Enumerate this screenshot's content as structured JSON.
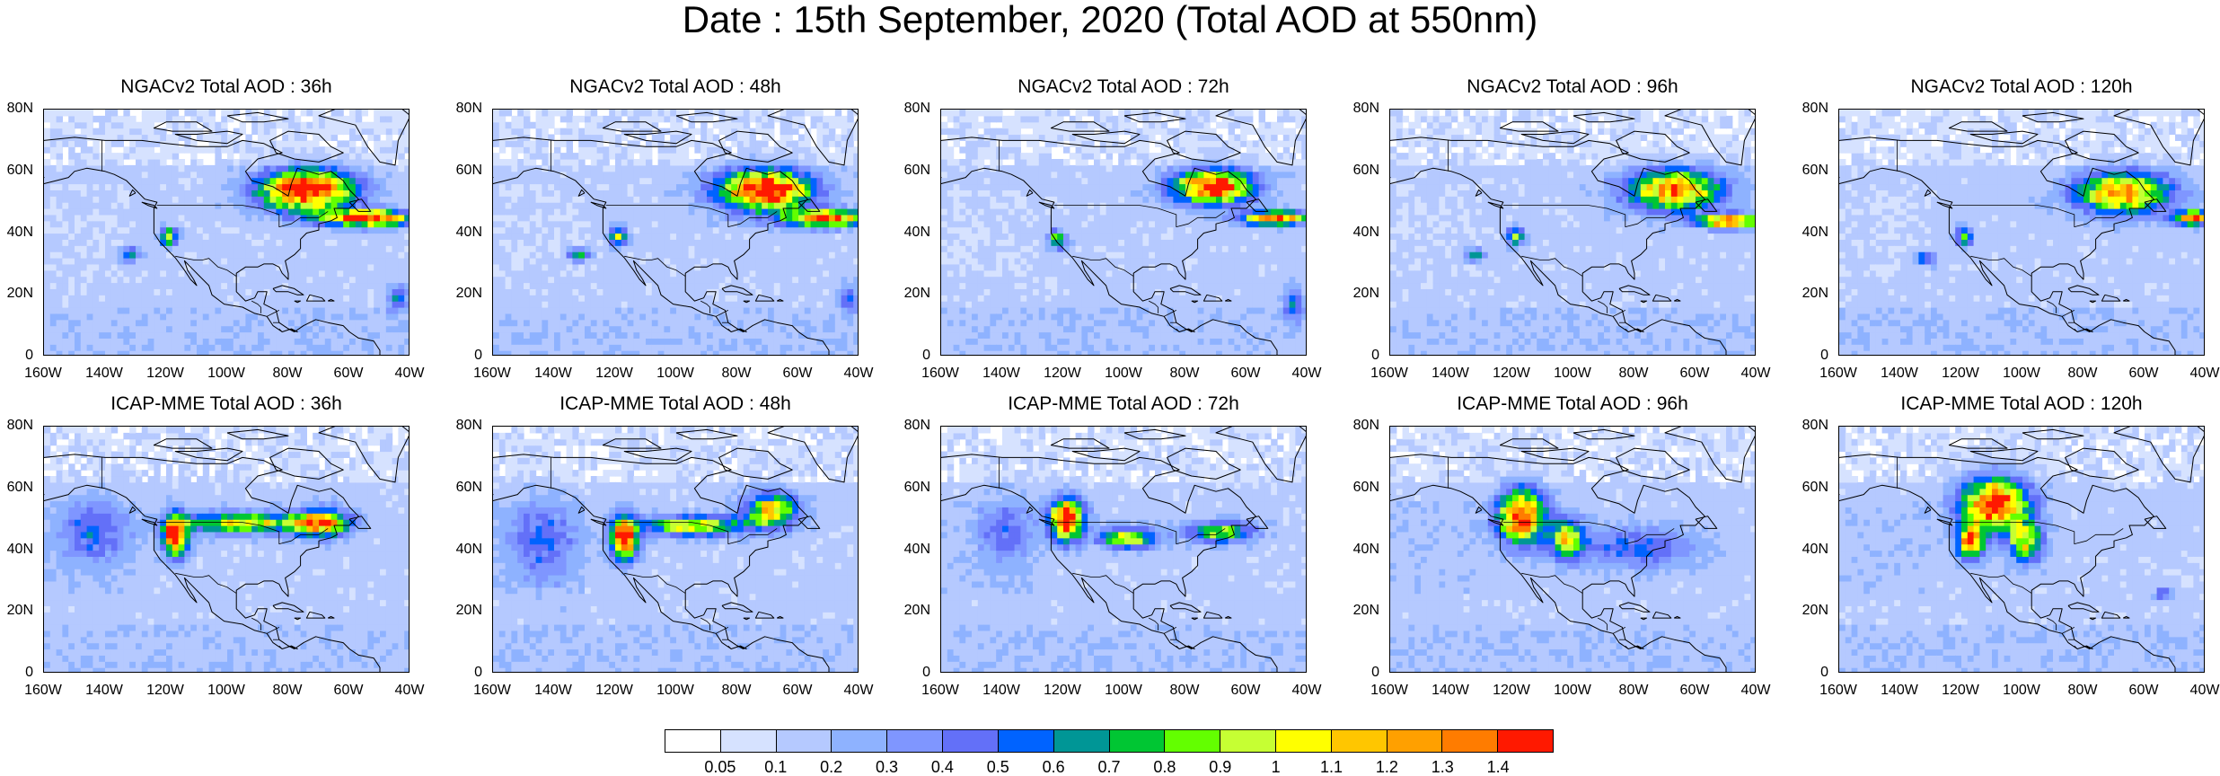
{
  "figure_title": "Date : 15th September, 2020 (Total AOD at 550nm)",
  "lat_ticks": [
    "80N",
    "60N",
    "40N",
    "20N",
    "0"
  ],
  "lon_ticks": [
    "160W",
    "140W",
    "120W",
    "100W",
    "80W",
    "60W",
    "40W"
  ],
  "rows": [
    {
      "model": "NGACv2",
      "panels": [
        {
          "title": "NGACv2 Total AOD : 36h",
          "lead": "36h",
          "plumes": [
            {
              "lon": -75,
              "lat": 53,
              "dlon": 14,
              "dlat": 6,
              "aod": 1.5
            },
            {
              "lon": -55,
              "lat": 44,
              "dlon": 14,
              "dlat": 2.5,
              "aod": 1.3
            },
            {
              "lon": -120,
              "lat": 38,
              "dlon": 2.5,
              "dlat": 2.5,
              "aod": 0.9
            },
            {
              "lon": -133,
              "lat": 32,
              "dlon": 3,
              "dlat": 2,
              "aod": 0.6
            },
            {
              "lon": -45,
              "lat": 18,
              "dlon": 3,
              "dlat": 4,
              "aod": 0.45
            }
          ]
        },
        {
          "title": "NGACv2 Total AOD : 48h",
          "lead": "48h",
          "plumes": [
            {
              "lon": -72,
              "lat": 53,
              "dlon": 14,
              "dlat": 6,
              "aod": 1.5
            },
            {
              "lon": -52,
              "lat": 44,
              "dlon": 12,
              "dlat": 2.5,
              "aod": 1.3
            },
            {
              "lon": -120,
              "lat": 38,
              "dlon": 2.5,
              "dlat": 2.5,
              "aod": 0.9
            },
            {
              "lon": -133,
              "lat": 32,
              "dlon": 3,
              "dlat": 2,
              "aod": 0.6
            },
            {
              "lon": -44,
              "lat": 18,
              "dlon": 3,
              "dlat": 4,
              "aod": 0.45
            }
          ]
        },
        {
          "title": "NGACv2 Total AOD : 72h",
          "lead": "72h",
          "plumes": [
            {
              "lon": -72,
              "lat": 54,
              "dlon": 12,
              "dlat": 5,
              "aod": 1.4
            },
            {
              "lon": -52,
              "lat": 44,
              "dlon": 10,
              "dlat": 2,
              "aod": 1.3
            },
            {
              "lon": -123,
              "lat": 37,
              "dlon": 2.5,
              "dlat": 2.5,
              "aod": 0.8
            },
            {
              "lon": -46,
              "lat": 16,
              "dlon": 3,
              "dlat": 5,
              "aod": 0.45
            }
          ]
        },
        {
          "title": "NGACv2 Total AOD : 96h",
          "lead": "96h",
          "plumes": [
            {
              "lon": -68,
              "lat": 53,
              "dlon": 14,
              "dlat": 6,
              "aod": 1.2
            },
            {
              "lon": -50,
              "lat": 43,
              "dlon": 10,
              "dlat": 2,
              "aod": 1.3
            },
            {
              "lon": -120,
              "lat": 38,
              "dlon": 2.5,
              "dlat": 2.5,
              "aod": 0.8
            },
            {
              "lon": -133,
              "lat": 32,
              "dlon": 3,
              "dlat": 2,
              "aod": 0.55
            }
          ]
        },
        {
          "title": "NGACv2 Total AOD : 120h",
          "lead": "120h",
          "plumes": [
            {
              "lon": -68,
              "lat": 52,
              "dlon": 14,
              "dlat": 6,
              "aod": 1.2
            },
            {
              "lon": -45,
              "lat": 44,
              "dlon": 6,
              "dlat": 2,
              "aod": 1.3
            },
            {
              "lon": -120,
              "lat": 38,
              "dlon": 2.5,
              "dlat": 2.5,
              "aod": 0.8
            },
            {
              "lon": -133,
              "lat": 31,
              "dlon": 3,
              "dlat": 2,
              "aod": 0.55
            }
          ]
        }
      ]
    },
    {
      "model": "ICAP-MME",
      "panels": [
        {
          "title": "ICAP-MME Total AOD : 36h",
          "lead": "36h",
          "plumes": [
            {
              "lon": -118,
              "lat": 44,
              "dlon": 3.5,
              "dlat": 6,
              "aod": 1.5
            },
            {
              "lon": -95,
              "lat": 48,
              "dlon": 20,
              "dlat": 3,
              "aod": 0.9
            },
            {
              "lon": -70,
              "lat": 48,
              "dlon": 8,
              "dlat": 4,
              "aod": 1.1
            },
            {
              "lon": -145,
              "lat": 45,
              "dlon": 10,
              "dlat": 10,
              "aod": 0.35
            }
          ]
        },
        {
          "title": "ICAP-MME Total AOD : 48h",
          "lead": "48h",
          "plumes": [
            {
              "lon": -118,
              "lat": 43,
              "dlon": 4,
              "dlat": 6,
              "aod": 1.5
            },
            {
              "lon": -95,
              "lat": 47,
              "dlon": 16,
              "dlat": 3,
              "aod": 0.9
            },
            {
              "lon": -70,
              "lat": 52,
              "dlon": 8,
              "dlat": 5,
              "aod": 1.0
            },
            {
              "lon": -145,
              "lat": 42,
              "dlon": 10,
              "dlat": 12,
              "aod": 0.35
            }
          ]
        },
        {
          "title": "ICAP-MME Total AOD : 72h",
          "lead": "72h",
          "plumes": [
            {
              "lon": -120,
              "lat": 49,
              "dlon": 5,
              "dlat": 6,
              "aod": 1.5
            },
            {
              "lon": -100,
              "lat": 43,
              "dlon": 8,
              "dlat": 3,
              "aod": 0.9
            },
            {
              "lon": -70,
              "lat": 45,
              "dlon": 10,
              "dlat": 3,
              "aod": 0.8
            },
            {
              "lon": -140,
              "lat": 45,
              "dlon": 8,
              "dlat": 10,
              "aod": 0.3
            }
          ]
        },
        {
          "title": "ICAP-MME Total AOD : 96h",
          "lead": "96h",
          "plumes": [
            {
              "lon": -118,
              "lat": 50,
              "dlon": 7,
              "dlat": 8,
              "aod": 1.4
            },
            {
              "lon": -103,
              "lat": 43,
              "dlon": 5,
              "dlat": 6,
              "aod": 0.9
            },
            {
              "lon": -80,
              "lat": 40,
              "dlon": 18,
              "dlat": 6,
              "aod": 0.4
            }
          ]
        },
        {
          "title": "ICAP-MME Total AOD : 120h",
          "lead": "120h",
          "plumes": [
            {
              "lon": -110,
              "lat": 54,
              "dlon": 10,
              "dlat": 8,
              "aod": 1.4
            },
            {
              "lon": -118,
              "lat": 42,
              "dlon": 4,
              "dlat": 5,
              "aod": 1.2
            },
            {
              "lon": -100,
              "lat": 42,
              "dlon": 5,
              "dlat": 6,
              "aod": 0.9
            },
            {
              "lon": -55,
              "lat": 25,
              "dlon": 2,
              "dlat": 2,
              "aod": 0.5
            }
          ]
        }
      ]
    }
  ],
  "colorbar": {
    "labels": [
      "0.05",
      "0.1",
      "0.2",
      "0.3",
      "0.4",
      "0.5",
      "0.6",
      "0.7",
      "0.8",
      "0.9",
      "1",
      "1.1",
      "1.2",
      "1.3",
      "1.4"
    ],
    "colors": [
      "#ffffff",
      "#d6e2ff",
      "#b5c9ff",
      "#8eb2ff",
      "#7f96ff",
      "#6370f8",
      "#0063ff",
      "#009696",
      "#00c633",
      "#63ff00",
      "#c6ff33",
      "#ffff00",
      "#ffc600",
      "#ffa000",
      "#ff7c00",
      "#ff1900"
    ]
  }
}
